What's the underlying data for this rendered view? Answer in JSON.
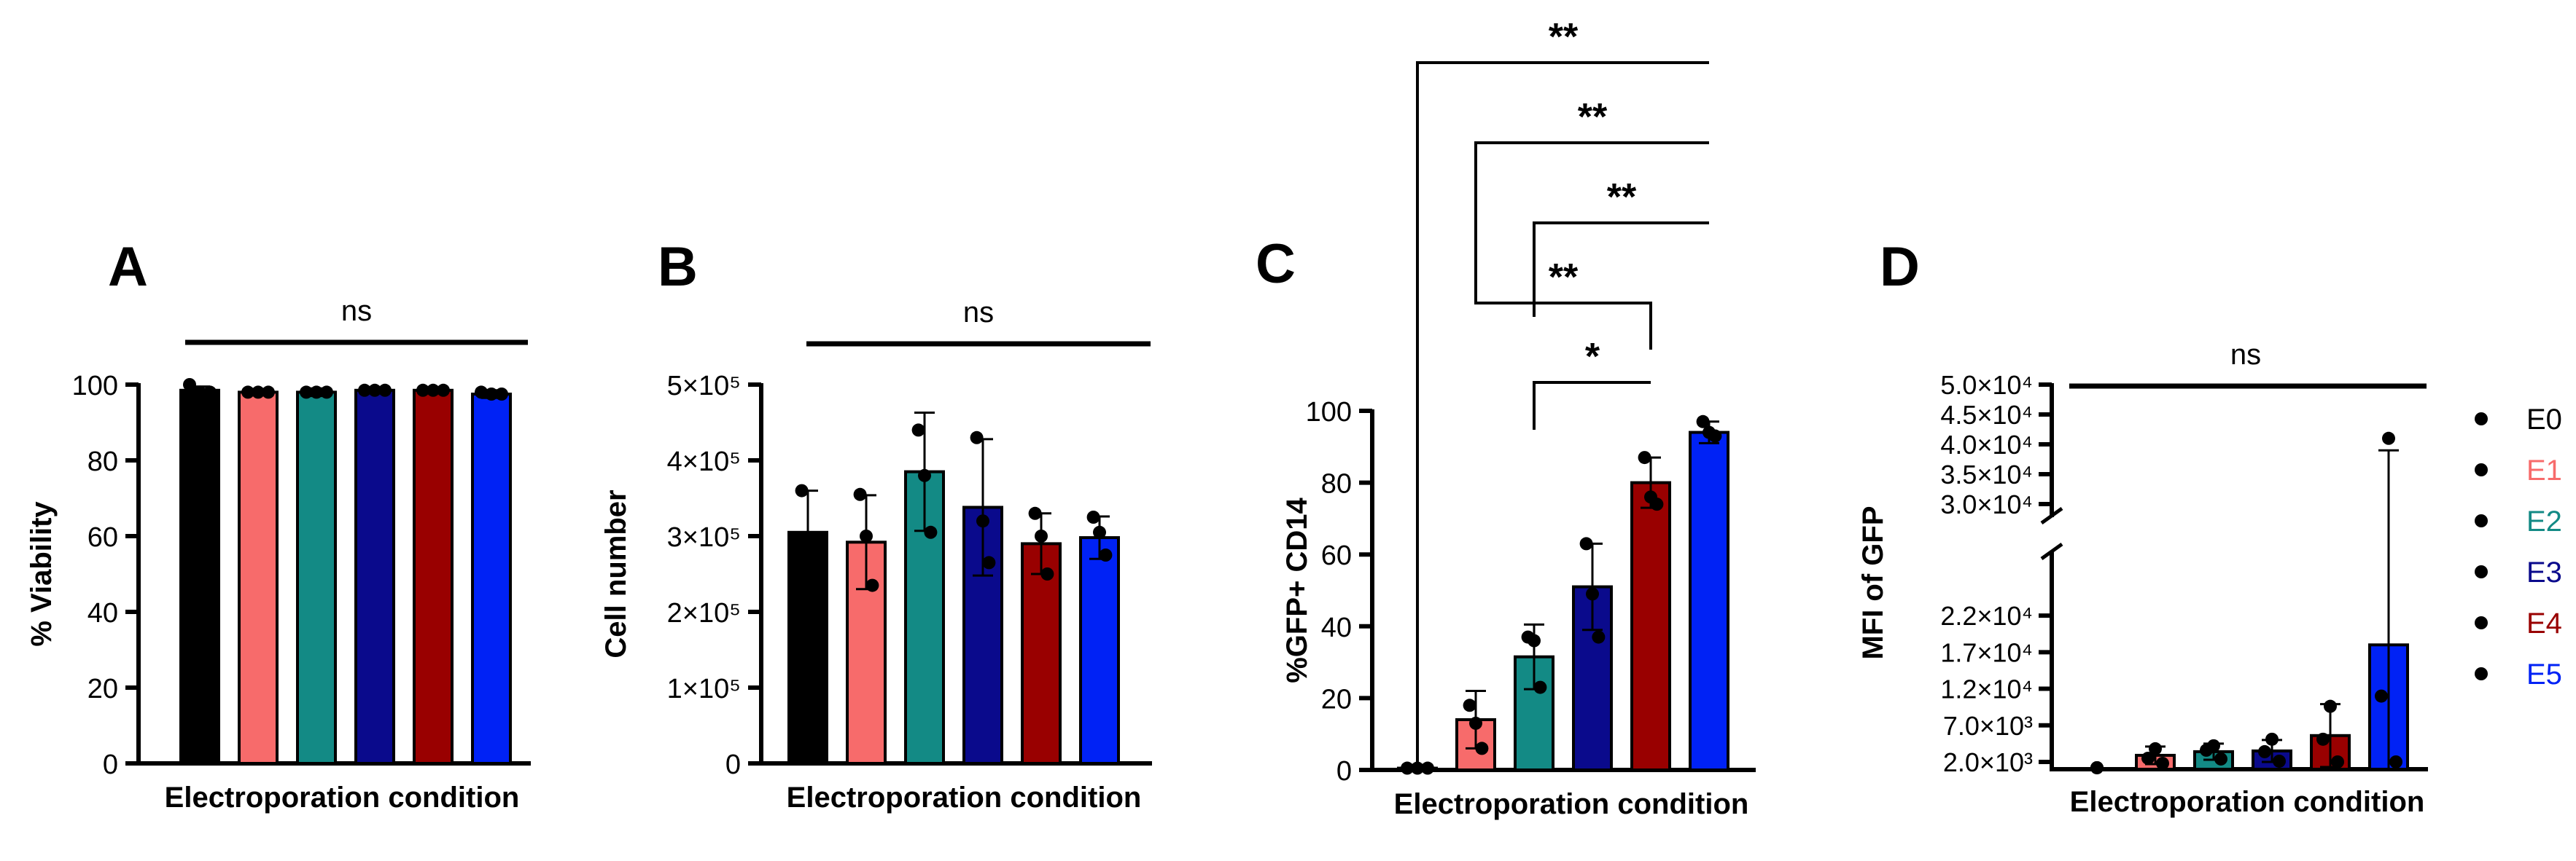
{
  "colors": {
    "E0": "#000000",
    "E1": "#f76b6b",
    "E2": "#138a85",
    "E3": "#0a0a8c",
    "E4": "#990000",
    "E5": "#0022f5"
  },
  "legend": {
    "entries": [
      {
        "label": "E0",
        "color": "#000000"
      },
      {
        "label": "E1",
        "color": "#f76b6b"
      },
      {
        "label": "E2",
        "color": "#138a85"
      },
      {
        "label": "E3",
        "color": "#0a0a8c"
      },
      {
        "label": "E4",
        "color": "#990000"
      },
      {
        "label": "E5",
        "color": "#0022f5"
      }
    ]
  },
  "chart_data": [
    {
      "panel": "A",
      "type": "bar",
      "categories": [
        "E0",
        "E1",
        "E2",
        "E3",
        "E4",
        "E5"
      ],
      "values": [
        98.5,
        98,
        98,
        98.5,
        98.5,
        97.5
      ],
      "error": [
        1,
        0.5,
        1,
        0.5,
        0.5,
        1
      ],
      "points": [
        [
          100,
          98,
          98
        ],
        [
          98,
          98,
          98
        ],
        [
          98,
          98,
          98
        ],
        [
          98.5,
          98.5,
          98.5
        ],
        [
          98.5,
          98.5,
          98.5
        ],
        [
          98,
          97.5,
          97.5
        ]
      ],
      "xlabel": "Electroporation condition",
      "ylabel": "% Viability",
      "ylim": [
        0,
        100
      ],
      "yticks": [
        0,
        20,
        40,
        60,
        80,
        100
      ],
      "ytick_labels": [
        "0",
        "20",
        "40",
        "60",
        "80",
        "100"
      ],
      "significance": [
        {
          "from": 0,
          "to": 5,
          "label": "ns"
        }
      ]
    },
    {
      "panel": "B",
      "type": "bar",
      "categories": [
        "E0",
        "E1",
        "E2",
        "E3",
        "E4",
        "E5"
      ],
      "values": [
        305000,
        292000,
        385000,
        338000,
        290000,
        298000
      ],
      "error": [
        55000,
        62000,
        78000,
        90000,
        40000,
        28000
      ],
      "points": [
        [
          360000,
          290000,
          265000
        ],
        [
          355000,
          300000,
          235000
        ],
        [
          440000,
          380000,
          305000
        ],
        [
          430000,
          320000,
          265000
        ],
        [
          330000,
          300000,
          250000
        ],
        [
          325000,
          305000,
          275000
        ]
      ],
      "xlabel": "Electroporation condition",
      "ylabel": "Cell number",
      "ylim": [
        0,
        500000
      ],
      "yticks": [
        0,
        100000,
        200000,
        300000,
        400000,
        500000
      ],
      "ytick_labels": [
        "0",
        "1×10⁵",
        "2×10⁵",
        "3×10⁵",
        "4×10⁵",
        "5×10⁵"
      ],
      "significance": [
        {
          "from": 0,
          "to": 5,
          "label": "ns"
        }
      ]
    },
    {
      "panel": "C",
      "type": "bar",
      "categories": [
        "E0",
        "E1",
        "E2",
        "E3",
        "E4",
        "E5"
      ],
      "values": [
        0.5,
        14,
        31.5,
        51,
        80,
        94
      ],
      "error": [
        0,
        8,
        9,
        12,
        7,
        3
      ],
      "points": [
        [
          0.5,
          0.5,
          0.5
        ],
        [
          18,
          13,
          6
        ],
        [
          37,
          36,
          23
        ],
        [
          63,
          49,
          37
        ],
        [
          87,
          76,
          74
        ],
        [
          97,
          94,
          93
        ]
      ],
      "xlabel": "Electroporation condition",
      "ylabel": "%GFP+ CD14",
      "ylim": [
        0,
        100
      ],
      "yticks": [
        0,
        20,
        40,
        60,
        80,
        100
      ],
      "ytick_labels": [
        "0",
        "20",
        "40",
        "60",
        "80",
        "100"
      ],
      "significance": [
        {
          "from": 2,
          "to": 4,
          "label": "*"
        },
        {
          "from": 1,
          "to": 4,
          "label": "**"
        },
        {
          "from": 2,
          "to": 5,
          "label": "**"
        },
        {
          "from": 1,
          "to": 5,
          "label": "**"
        },
        {
          "from": 0,
          "to": 5,
          "label": "**"
        }
      ]
    },
    {
      "panel": "D",
      "type": "bar",
      "categories": [
        "E0",
        "E1",
        "E2",
        "E3",
        "E4",
        "E5"
      ],
      "values": [
        0,
        2900,
        3400,
        3500,
        5600,
        18000
      ],
      "error": [
        0,
        1200,
        1100,
        1500,
        4300,
        21000
      ],
      "points": [
        [
          1200,
          1200,
          1200
        ],
        [
          3800,
          2500,
          1800
        ],
        [
          4200,
          3600,
          2400
        ],
        [
          5100,
          3400,
          2100
        ],
        [
          9600,
          5100,
          2000
        ],
        [
          41000,
          11000,
          2000
        ]
      ],
      "xlabel": "Electroporation condition",
      "ylabel": "MFI of GFP",
      "y_axis_break": true,
      "ylim_lower": [
        1000,
        25000
      ],
      "ylim_upper": [
        30000,
        50000
      ],
      "yticks_lower": [
        2000,
        7000,
        12000,
        17000,
        22000
      ],
      "ytick_labels_lower": [
        "2.0×10³",
        "7.0×10³",
        "1.2×10⁴",
        "1.7×10⁴",
        "2.2×10⁴"
      ],
      "yticks_upper": [
        30000,
        35000,
        40000,
        45000,
        50000
      ],
      "ytick_labels_upper": [
        "3.0×10⁴",
        "3.5×10⁴",
        "4.0×10⁴",
        "4.5×10⁴",
        "5.0×10⁴"
      ],
      "significance": [
        {
          "from": 0,
          "to": 5,
          "label": "ns"
        }
      ]
    }
  ]
}
